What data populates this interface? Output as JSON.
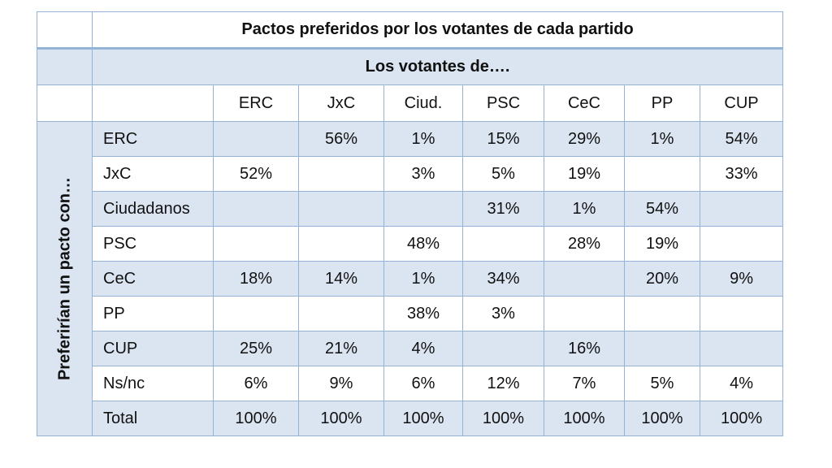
{
  "table": {
    "title": "Pactos preferidos por los votantes de cada partido",
    "group_header": "Los votantes de….",
    "side_label": "Preferirían  un pacto con…",
    "columns": [
      "ERC",
      "JxC",
      "Ciud.",
      "PSC",
      "CeC",
      "PP",
      "CUP"
    ],
    "rows": [
      {
        "label": "ERC",
        "cells": [
          "",
          "56%",
          "1%",
          "15%",
          "29%",
          "1%",
          "54%"
        ]
      },
      {
        "label": "JxC",
        "cells": [
          "52%",
          "",
          "3%",
          "5%",
          "19%",
          "",
          "33%"
        ]
      },
      {
        "label": "Ciudadanos",
        "cells": [
          "",
          "",
          "",
          "31%",
          "1%",
          "54%",
          ""
        ]
      },
      {
        "label": "PSC",
        "cells": [
          "",
          "",
          "48%",
          "",
          "28%",
          "19%",
          ""
        ]
      },
      {
        "label": "CeC",
        "cells": [
          "18%",
          "14%",
          "1%",
          "34%",
          "",
          "20%",
          "9%"
        ]
      },
      {
        "label": "PP",
        "cells": [
          "",
          "",
          "38%",
          "3%",
          "",
          "",
          ""
        ]
      },
      {
        "label": "CUP",
        "cells": [
          "25%",
          "21%",
          "4%",
          "",
          "16%",
          "",
          ""
        ]
      },
      {
        "label": "Ns/nc",
        "cells": [
          "6%",
          "9%",
          "6%",
          "12%",
          "7%",
          "5%",
          "4%"
        ]
      },
      {
        "label": "Total",
        "cells": [
          "100%",
          "100%",
          "100%",
          "100%",
          "100%",
          "100%",
          "100%"
        ]
      }
    ],
    "colors": {
      "border": "#95b3d7",
      "band": "#dbe5f1",
      "background": "#ffffff"
    }
  }
}
